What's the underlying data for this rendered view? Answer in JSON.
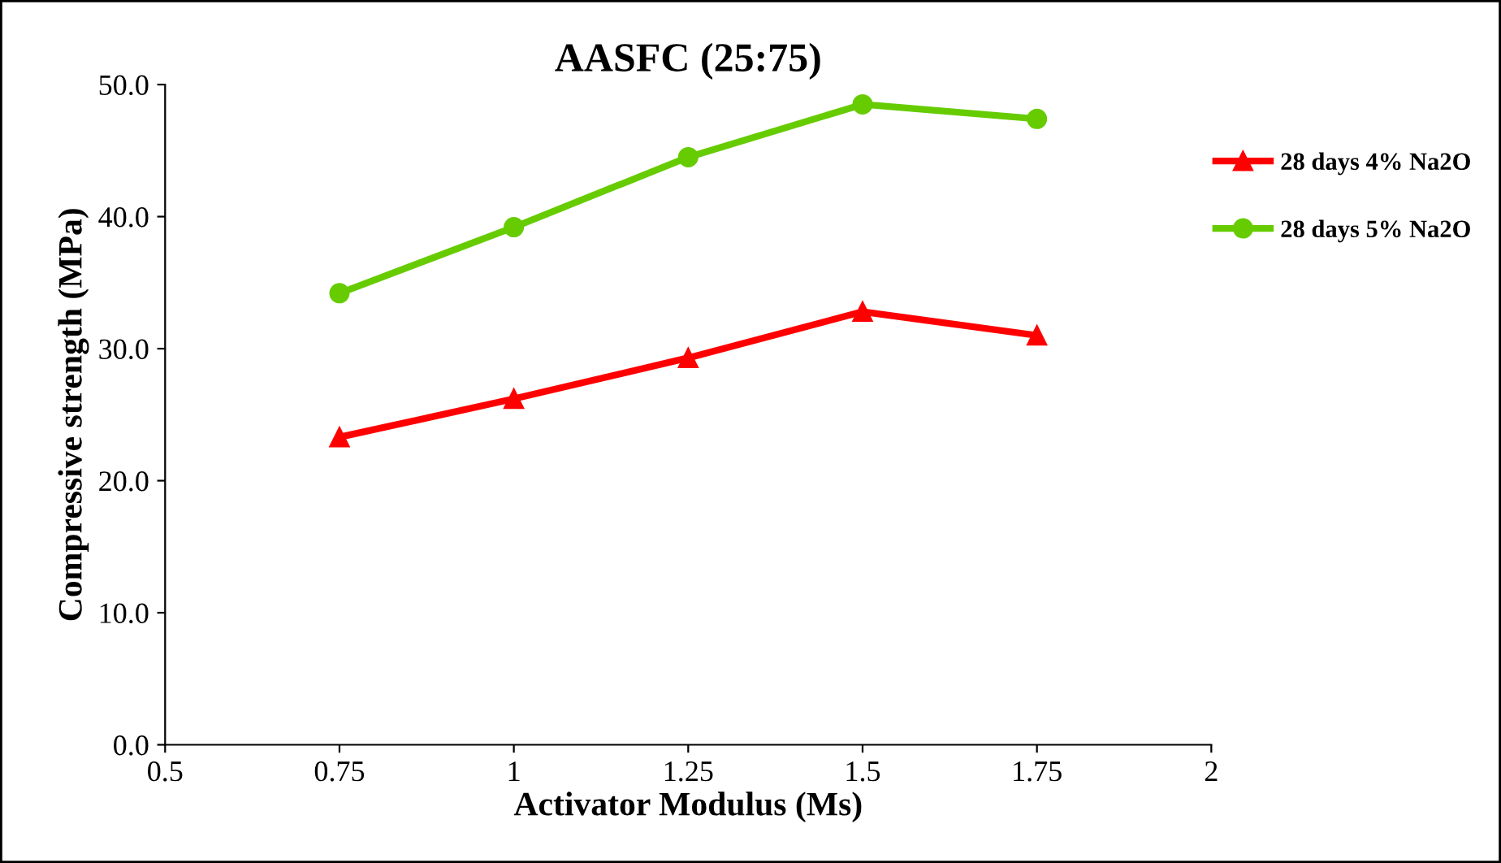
{
  "chart_data": {
    "type": "line",
    "title": "AASFC (25:75)",
    "xlabel": "Activator Modulus (Ms)",
    "ylabel": "Compressive strength (MPa)",
    "x": [
      0.75,
      1,
      1.25,
      1.5,
      1.75
    ],
    "series": [
      {
        "name": "28 days 4% Na2O",
        "color": "#ff0000",
        "values": [
          23.3,
          26.2,
          29.3,
          32.8,
          31.0
        ],
        "marker": "triangle"
      },
      {
        "name": "28 days 5% Na2O",
        "color": "#66cc00",
        "values": [
          34.2,
          39.2,
          44.5,
          48.5,
          47.4
        ],
        "marker": "circle"
      }
    ],
    "xlim": [
      0.5,
      2
    ],
    "xticks": [
      0.5,
      0.75,
      1,
      1.25,
      1.5,
      1.75,
      2
    ],
    "ylim": [
      0,
      50
    ],
    "yticks": [
      {
        "value": 0,
        "label": "0.0"
      },
      {
        "value": 10,
        "label": "10.0"
      },
      {
        "value": 20,
        "label": "20.0"
      },
      {
        "value": 30,
        "label": "30.0"
      },
      {
        "value": 40,
        "label": "40.0"
      },
      {
        "value": 50,
        "label": "50.0"
      }
    ],
    "grid": false,
    "legend": "top right",
    "line_style": "solid"
  }
}
